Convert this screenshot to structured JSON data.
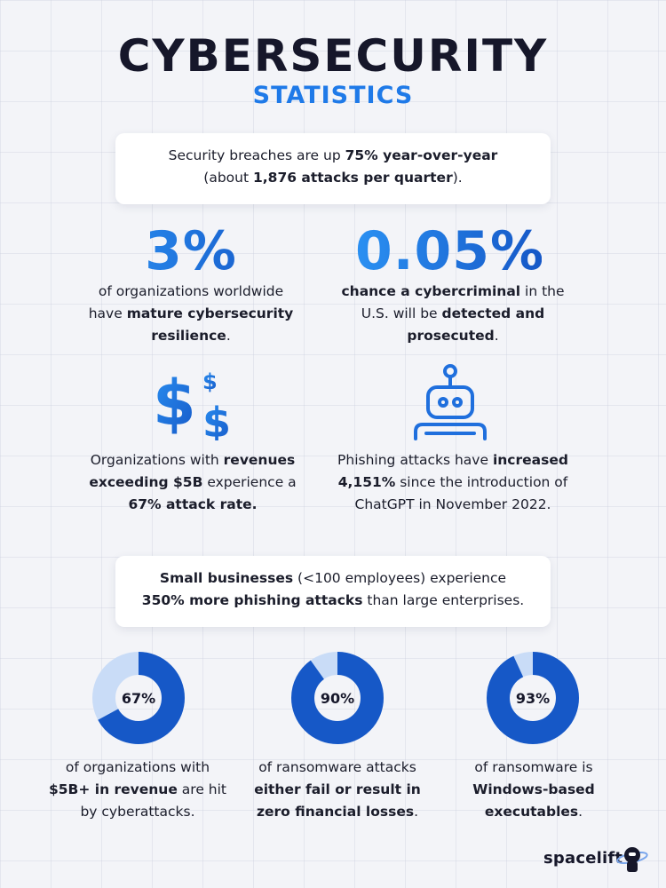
{
  "header": {
    "title": "CYBERSECURITY",
    "subtitle": "STATISTICS"
  },
  "card_top": {
    "line1_pre": "Security breaches are up ",
    "line1_bold": "75% year-over-year",
    "line2_pre": "(about ",
    "line2_bold": "1,876 attacks per quarter",
    "line2_post": ")."
  },
  "stat_left": {
    "value": "3%",
    "text_pre": "of organizations worldwide have ",
    "text_bold": "mature cybersecurity resilience",
    "text_post": "."
  },
  "stat_right": {
    "value": "0.05%",
    "text_bold1": "chance a cybercriminal",
    "text_mid": " in the U.S. will be ",
    "text_bold2": "detected and prosecuted",
    "text_post": "."
  },
  "revenue_stat": {
    "icon": "dollar-signs-icon",
    "text_pre": "Organizations with ",
    "text_bold1": "revenues exceeding $5B",
    "text_mid": " experience a ",
    "text_bold2": "67% attack rate."
  },
  "phishing_stat": {
    "icon": "robot-icon",
    "text_pre": "Phishing attacks have ",
    "text_bold": "increased 4,151%",
    "text_post": " since the introduction of ChatGPT in November 2022."
  },
  "card_bottom": {
    "line1_bold": "Small businesses",
    "line1_post": " (<100 employees) experience",
    "line2_bold": "350% more phishing attacks",
    "line2_post": " than large enterprises."
  },
  "donuts": [
    {
      "label": "67%",
      "value": 67,
      "text_pre": "of organizations with ",
      "text_bold": "$5B+ in revenue",
      "text_post": " are hit by cyberattacks."
    },
    {
      "label": "90%",
      "value": 90,
      "text_pre": "of ransomware attacks ",
      "text_bold": "either fail or result in zero financial losses",
      "text_post": "."
    },
    {
      "label": "93%",
      "value": 93,
      "text_pre": "of ransomware is ",
      "text_bold": "Windows-based executables",
      "text_post": "."
    }
  ],
  "brand": {
    "name": "spacelift",
    "icon": "astronaut-logo-icon"
  },
  "colors": {
    "accent": "#1f7ae8",
    "accent_dark": "#1658c7",
    "ring_light": "#c9dcf7",
    "text": "#16172a"
  }
}
